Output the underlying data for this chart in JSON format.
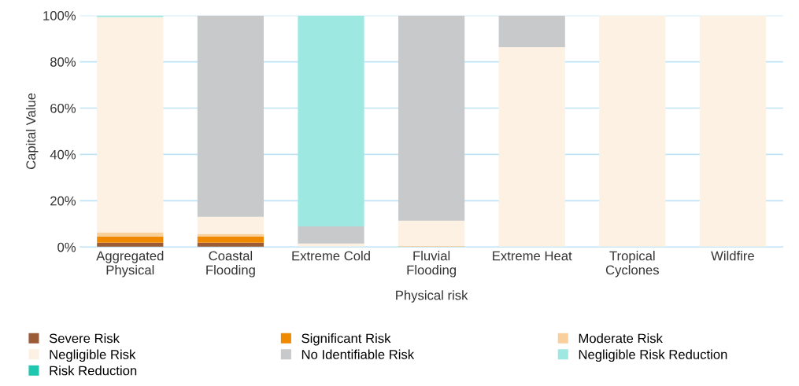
{
  "chart_data": {
    "type": "bar",
    "stacked": true,
    "xlabel": "Physical risk",
    "ylabel": "Capital Value",
    "categories": [
      "Aggregated\nPhysical",
      "Coastal\nFlooding",
      "Extreme Cold",
      "Fluvial\nFlooding",
      "Extreme Heat",
      "Tropical\nCyclones",
      "Wildfire"
    ],
    "series": [
      {
        "name": "Severe Risk",
        "color": "#9c5b37",
        "values": [
          1.9,
          1.9,
          0,
          0,
          0,
          0,
          0
        ]
      },
      {
        "name": "Significant Risk",
        "color": "#ef8a00",
        "values": [
          2.7,
          2.7,
          0,
          0,
          0,
          0,
          0
        ]
      },
      {
        "name": "Moderate Risk",
        "color": "#f9cf9b",
        "values": [
          1.8,
          1.1,
          0,
          0.4,
          0,
          0,
          0
        ]
      },
      {
        "name": "Negligible Risk",
        "color": "#fcf1e3",
        "values": [
          92.9,
          7.4,
          1.5,
          11.0,
          86.3,
          100,
          100
        ]
      },
      {
        "name": "No Identifiable Risk",
        "color": "#c8c9cb",
        "values": [
          0,
          86.9,
          7.4,
          88.6,
          13.7,
          0,
          0
        ]
      },
      {
        "name": "Negligible Risk Reduction",
        "color": "#9de8e1",
        "values": [
          0.7,
          0,
          91.1,
          0,
          0,
          0,
          0
        ]
      },
      {
        "name": "Risk Reduction",
        "color": "#1fc6b0",
        "values": [
          0,
          0,
          0,
          0,
          0,
          0,
          0
        ]
      }
    ],
    "ylim": [
      0,
      100
    ],
    "yticks": [
      {
        "value": 0,
        "label": "0%"
      },
      {
        "value": 20,
        "label": "20%"
      },
      {
        "value": 40,
        "label": "40%"
      },
      {
        "value": 60,
        "label": "60%"
      },
      {
        "value": 80,
        "label": "80%"
      },
      {
        "value": 100,
        "label": "100%"
      }
    ],
    "grid": "y",
    "legend": "bottom"
  }
}
